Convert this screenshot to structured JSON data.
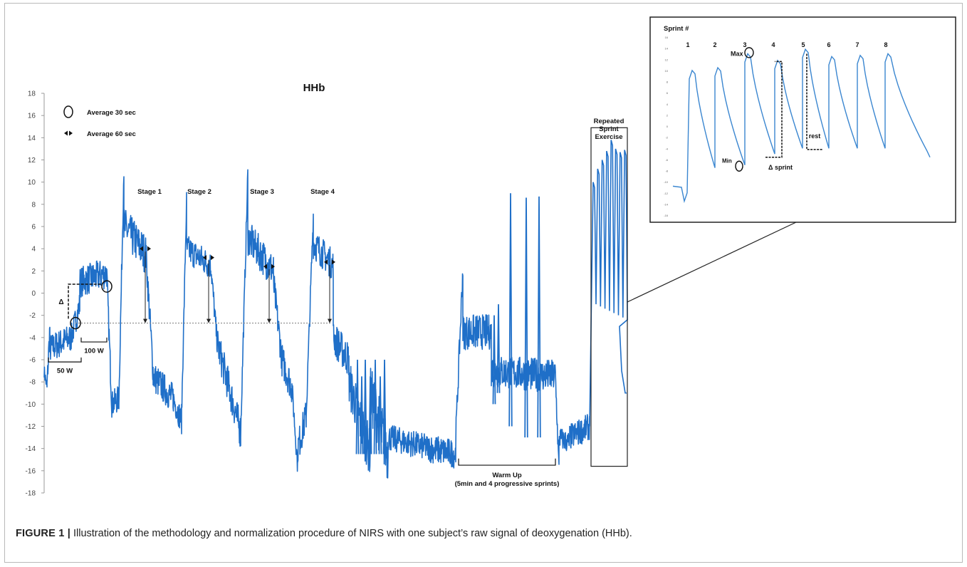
{
  "chart_data": [
    {
      "type": "line",
      "title": "HHb",
      "xlabel": "",
      "ylabel": "",
      "ylim": [
        -18,
        18
      ],
      "yticks": [
        "18",
        "16",
        "14",
        "12",
        "10",
        "8",
        "6",
        "4",
        "2",
        "0",
        "-2",
        "-4",
        "-6",
        "-8",
        "-10",
        "-12",
        "-14",
        "-16",
        "-18"
      ],
      "grid": false,
      "baseline_dotted": -2.7,
      "legend": [
        {
          "symbol": "circle",
          "label": "Average 30 sec"
        },
        {
          "symbol": "double-arrow",
          "label": "Average 60 sec"
        }
      ],
      "color": "#1f6fc8",
      "annotations": {
        "delta": "Δ",
        "w50": "50 W",
        "w100": "100 W",
        "stage1": "Stage 1",
        "stage2": "Stage 2",
        "stage3": "Stage 3",
        "stage4": "Stage 4",
        "warmup": "Warm Up",
        "warmup_sub": "(5min and 4 progressive sprints)",
        "rse_line1": "Repeated",
        "rse_line2": "Sprint",
        "rse_line3": "Exercise"
      },
      "segments": [
        {
          "name": "50 W",
          "start": -6.0,
          "end": -3.0
        },
        {
          "name": "100 W",
          "start": -1.0,
          "end": 1.5
        },
        {
          "name": "Stage 1",
          "peak": 11.3,
          "plateau": 4.0,
          "end": -8.5
        },
        {
          "name": "Stage 2",
          "peak": 8.4,
          "plateau": 3.0,
          "end": -11.5
        },
        {
          "name": "Stage 3",
          "peak": 10.8,
          "plateau": 2.5,
          "end": -13.0
        },
        {
          "name": "Stage 4",
          "peak": 7.0,
          "plateau": 3.0,
          "end": -14.0
        },
        {
          "name": "Warm Up",
          "start": -3.0,
          "sprint_peaks": [
            9.0,
            8.6,
            8.7
          ],
          "end": -13.5
        },
        {
          "name": "Repeated Sprint Exercise",
          "peaks": [
            10.0,
            11.2,
            12.0,
            12.8,
            13.8,
            13.0,
            12.7,
            12.9
          ],
          "end": -9.0
        }
      ]
    },
    {
      "type": "line",
      "title": "Sprint #",
      "categories": [
        "1",
        "2",
        "3",
        "4",
        "5",
        "6",
        "7",
        "8"
      ],
      "series": [
        {
          "values_peak": [
            10.0,
            10.5,
            13.0,
            11.8,
            13.8,
            12.5,
            12.7,
            13.0
          ],
          "values_min": [
            -10.5,
            -7.5,
            -7.0,
            -5.0,
            -4.0,
            -4.0,
            -4.0,
            -4.0
          ]
        }
      ],
      "annotations": {
        "max": "Max",
        "min": "Min",
        "delta_sprint": "Δ sprint",
        "rest": "rest"
      }
    }
  ],
  "caption": {
    "label": "FIGURE 1 |",
    "text": " Illustration of the methodology and normalization procedure of NIRS with one subject’s raw signal of deoxygenation (HHb)."
  }
}
